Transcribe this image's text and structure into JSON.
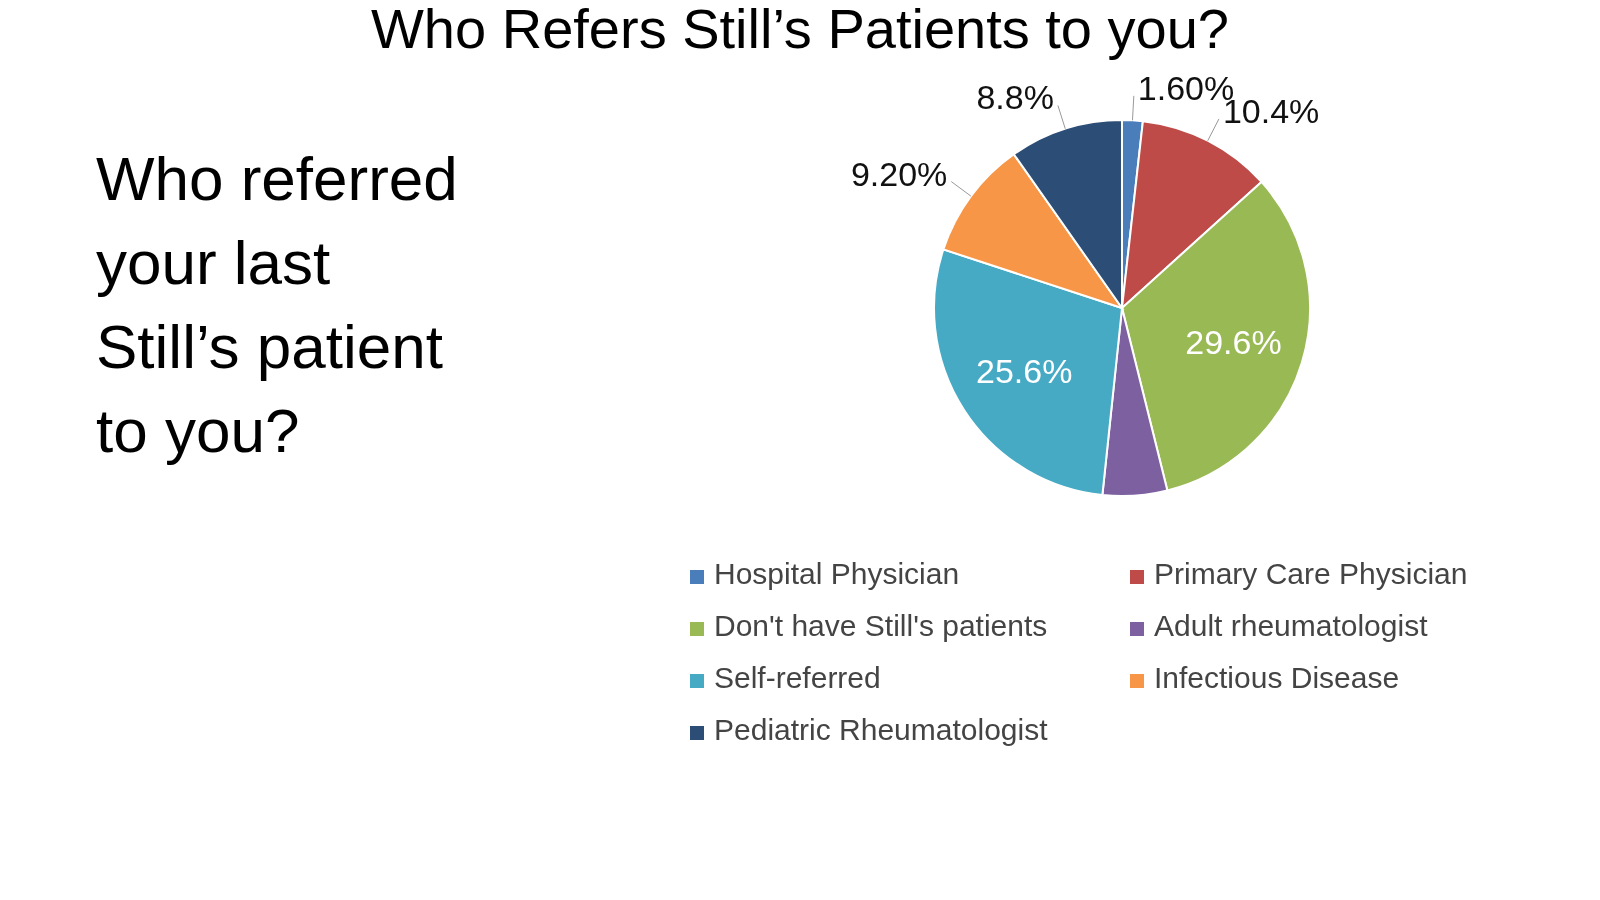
{
  "chart_data": {
    "type": "pie",
    "title": "Who Refers Still’s Patients to you?",
    "subtitle": "Who referred your last Still’s patient to you?",
    "categories": [
      "Hospital Physician",
      "Primary Care Physician",
      "Don't have  Still's patients",
      "Adult rheumatologist",
      "Self-referred",
      "Infectious Disease",
      "Pediatric Rheumatologist"
    ],
    "values": [
      1.6,
      10.4,
      29.6,
      5.0,
      25.6,
      9.2,
      8.8
    ],
    "value_labels": [
      "1.60%",
      "10.4%",
      "29.6%",
      null,
      "25.6%",
      "9.20%",
      "8.8%"
    ],
    "colors": [
      "#4a7ebb",
      "#be4b48",
      "#98b954",
      "#7d60a0",
      "#46aac5",
      "#f79646",
      "#2c4d75"
    ],
    "legend": "bottom"
  }
}
